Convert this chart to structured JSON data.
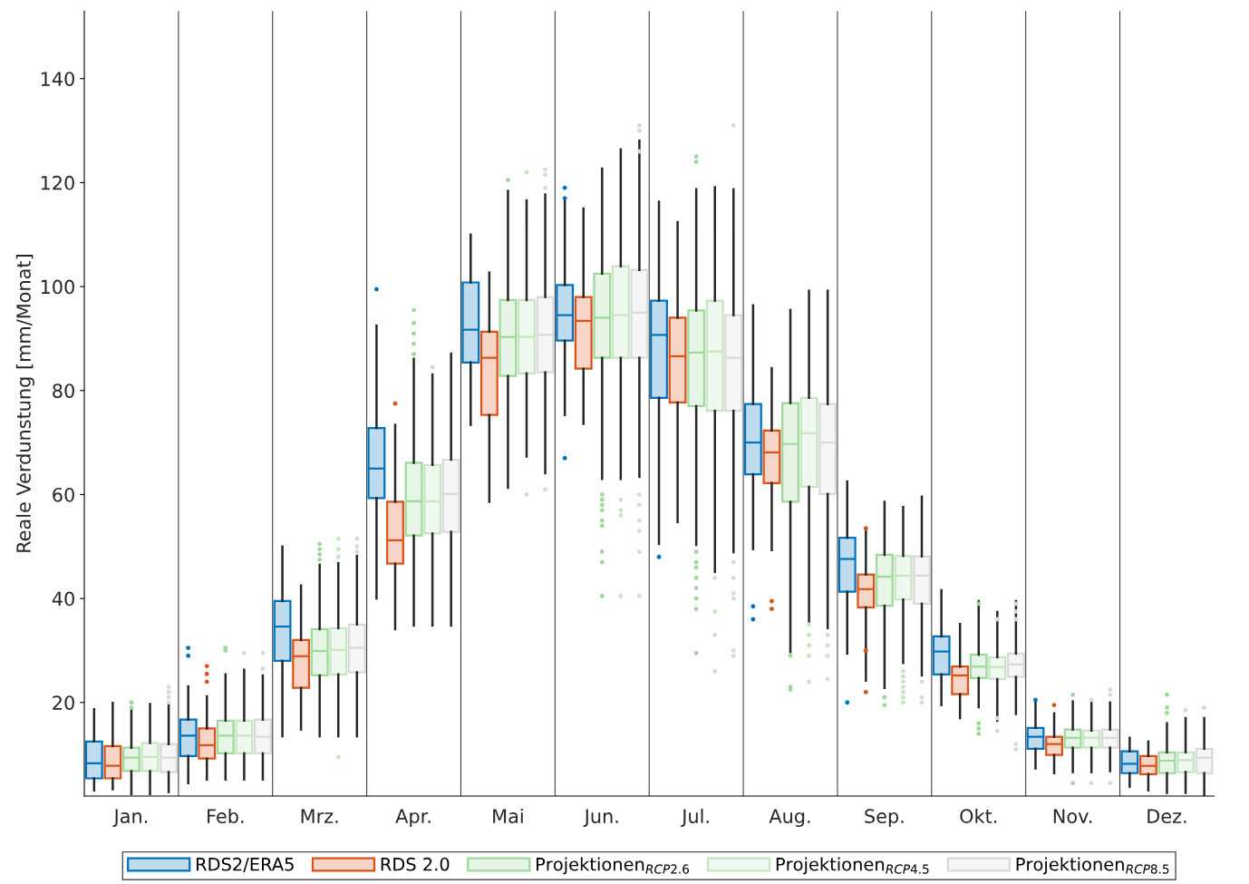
{
  "chart_data": {
    "type": "box",
    "ylabel": "Reale Verdunstung [mm/Monat]",
    "categories": [
      "Jan.",
      "Feb.",
      "Mrz.",
      "Apr.",
      "Mai",
      "Jun.",
      "Jul.",
      "Aug.",
      "Sep.",
      "Okt.",
      "Nov.",
      "Dez."
    ],
    "ylim": [
      2,
      153
    ],
    "yticks": [
      20,
      40,
      60,
      80,
      100,
      120,
      140
    ],
    "grid": "x",
    "legend": "bottom",
    "series": [
      {
        "name": "RDS2/ERA5",
        "color": "#0072bd",
        "boxes": [
          {
            "low": 3.1,
            "q1": 5.4,
            "median": 8.3,
            "q3": 12.5,
            "high": 18.7
          },
          {
            "low": 4.5,
            "q1": 9.7,
            "median": 13.6,
            "q3": 16.7,
            "high": 23.1,
            "outliers": [
              29,
              30.5
            ]
          },
          {
            "low": 13.5,
            "q1": 28,
            "median": 34.6,
            "q3": 39.5,
            "high": 50
          },
          {
            "low": 40,
            "q1": 59.3,
            "median": 65,
            "q3": 72.8,
            "high": 92.5,
            "outliers": [
              99.5
            ]
          },
          {
            "low": 73.4,
            "q1": 85.4,
            "median": 91.7,
            "q3": 100.8,
            "high": 110
          },
          {
            "low": 75.3,
            "q1": 89.6,
            "median": 94.5,
            "q3": 100.3,
            "high": 116.8,
            "outliers": [
              119,
              117,
              67
            ]
          },
          {
            "low": 50.5,
            "q1": 78.6,
            "median": 90.7,
            "q3": 97.3,
            "high": 116.3,
            "outliers": [
              48
            ]
          },
          {
            "low": 49.5,
            "q1": 63.9,
            "median": 70,
            "q3": 77.4,
            "high": 96.4,
            "outliers": [
              38.5,
              36
            ]
          },
          {
            "low": 29.4,
            "q1": 41.3,
            "median": 47.6,
            "q3": 51.7,
            "high": 62.5,
            "outliers": [
              20
            ]
          },
          {
            "low": 19.5,
            "q1": 25.4,
            "median": 29.8,
            "q3": 32.7,
            "high": 41.6
          },
          {
            "low": 7.3,
            "q1": 11.1,
            "median": 13.4,
            "q3": 15.1,
            "high": 20,
            "outliers": [
              20.5
            ]
          },
          {
            "low": 3.8,
            "q1": 6.4,
            "median": 8.2,
            "q3": 10.6,
            "high": 13.2
          }
        ]
      },
      {
        "name": "RDS 2.0",
        "color": "#d95319",
        "boxes": [
          {
            "low": 3.3,
            "q1": 5.4,
            "median": 7.8,
            "q3": 11.6,
            "high": 19.9
          },
          {
            "low": 5.2,
            "q1": 9.2,
            "median": 11.8,
            "q3": 15,
            "high": 21.2,
            "outliers": [
              24,
              25.5,
              27
            ]
          },
          {
            "low": 14.8,
            "q1": 22.8,
            "median": 28.9,
            "q3": 32,
            "high": 42.5
          },
          {
            "low": 34.1,
            "q1": 46.7,
            "median": 51.2,
            "q3": 58.6,
            "high": 73.4,
            "outliers": [
              77.5
            ]
          },
          {
            "low": 58.6,
            "q1": 75.3,
            "median": 86.3,
            "q3": 91.3,
            "high": 102.7
          },
          {
            "low": 73.6,
            "q1": 84.2,
            "median": 93.4,
            "q3": 98,
            "high": 115
          },
          {
            "low": 54.7,
            "q1": 77.7,
            "median": 86.6,
            "q3": 94,
            "high": 112.4
          },
          {
            "low": 49.3,
            "q1": 62.2,
            "median": 68.1,
            "q3": 72.3,
            "high": 84.3,
            "outliers": [
              39.5,
              38
            ]
          },
          {
            "low": 24.2,
            "q1": 38.3,
            "median": 41.8,
            "q3": 44.6,
            "high": 52.9,
            "outliers": [
              53.5,
              30,
              22
            ]
          },
          {
            "low": 17,
            "q1": 21.6,
            "median": 25.2,
            "q3": 26.9,
            "high": 35.1
          },
          {
            "low": 6.4,
            "q1": 9.9,
            "median": 12,
            "q3": 13.4,
            "high": 17.9,
            "outliers": [
              19.5
            ]
          },
          {
            "low": 3.1,
            "q1": 6.2,
            "median": 7.8,
            "q3": 9.7,
            "high": 12.5
          }
        ]
      },
      {
        "name": "Projektionen$_{RCP2.6}$",
        "color": "#9fd89b",
        "boxes": [
          {
            "low": 2.4,
            "q1": 6.8,
            "median": 9.4,
            "q3": 11.3,
            "high": 18.8,
            "outliers": [
              19,
              20
            ]
          },
          {
            "low": 5.2,
            "q1": 10.2,
            "median": 13.6,
            "q3": 16.5,
            "high": 25.4,
            "outliers": [
              30,
              30.5
            ]
          },
          {
            "low": 13.5,
            "q1": 25.2,
            "median": 29.9,
            "q3": 34.1,
            "high": 46.5,
            "outliers": [
              47.5,
              48.5,
              49.5,
              50.5
            ]
          },
          {
            "low": 34.8,
            "q1": 52.1,
            "median": 58.7,
            "q3": 66.1,
            "high": 86.1,
            "outliers": [
              87,
              89,
              91,
              93,
              95.5
            ]
          },
          {
            "low": 61.3,
            "q1": 82.8,
            "median": 90.3,
            "q3": 97.4,
            "high": 118.4,
            "outliers": [
              120.5
            ]
          },
          {
            "low": 63,
            "q1": 86.3,
            "median": 94,
            "q3": 102.5,
            "high": 122.7,
            "outliers": [
              60,
              59,
              58,
              57,
              55,
              54,
              49,
              47,
              40.5
            ]
          },
          {
            "low": 50.3,
            "q1": 77,
            "median": 87.3,
            "q3": 95.4,
            "high": 118.7,
            "outliers": [
              125,
              124,
              49,
              47,
              46,
              44,
              42,
              40,
              38,
              29.5
            ]
          },
          {
            "low": 29.7,
            "q1": 58.6,
            "median": 69.7,
            "q3": 77.6,
            "high": 95.5,
            "outliers": [
              29,
              23,
              22.5
            ]
          },
          {
            "low": 22.8,
            "q1": 38.6,
            "median": 44.2,
            "q3": 48.4,
            "high": 58.6,
            "outliers": [
              21,
              19.5
            ]
          },
          {
            "low": 19.1,
            "q1": 24.7,
            "median": 26.9,
            "q3": 29.2,
            "high": 39.5,
            "outliers": [
              39,
              16,
              15,
              14
            ]
          },
          {
            "low": 6.6,
            "q1": 11.3,
            "median": 13.2,
            "q3": 14.8,
            "high": 20.2,
            "outliers": [
              21.5,
              4.5
            ]
          },
          {
            "low": 2.6,
            "q1": 6.4,
            "median": 8.8,
            "q3": 10.4,
            "high": 16,
            "outliers": [
              21.5,
              19,
              18
            ]
          }
        ]
      },
      {
        "name": "Projektionen$_{RCP4.5}$",
        "color": "#c5e6c1",
        "boxes": [
          {
            "low": 2.4,
            "q1": 6.8,
            "median": 9.5,
            "q3": 12.2,
            "high": 19.7
          },
          {
            "low": 5.2,
            "q1": 10.2,
            "median": 13.6,
            "q3": 16.5,
            "high": 26.3,
            "outliers": [
              29.5
            ]
          },
          {
            "low": 13.5,
            "q1": 25.4,
            "median": 30.1,
            "q3": 34.3,
            "high": 46.8,
            "outliers": [
              48,
              49.5,
              51.5,
              9.5
            ]
          },
          {
            "low": 34.8,
            "q1": 52.5,
            "median": 58.7,
            "q3": 65.7,
            "high": 83.1,
            "outliers": [
              84.5
            ]
          },
          {
            "low": 67.3,
            "q1": 83.3,
            "median": 90.3,
            "q3": 97.4,
            "high": 116.6,
            "outliers": [
              122,
              60
            ]
          },
          {
            "low": 63,
            "q1": 86.3,
            "median": 94.5,
            "q3": 103.9,
            "high": 126.4,
            "outliers": [
              59,
              57,
              56,
              40.5
            ]
          },
          {
            "low": 45.1,
            "q1": 76.1,
            "median": 87.5,
            "q3": 97.3,
            "high": 119.1,
            "outliers": [
              44,
              37.5,
              33,
              26
            ]
          },
          {
            "low": 35.1,
            "q1": 61.5,
            "median": 71.8,
            "q3": 78.6,
            "high": 99.2,
            "outliers": [
              35,
              33,
              31,
              29,
              24
            ]
          },
          {
            "low": 27.6,
            "q1": 39.8,
            "median": 44.4,
            "q3": 48.2,
            "high": 57.6,
            "outliers": [
              26,
              25,
              24,
              23,
              22,
              21,
              20
            ]
          },
          {
            "low": 16.5,
            "q1": 24.5,
            "median": 26.8,
            "q3": 28.7,
            "high": 37.4,
            "outliers": [
              36,
              17,
              14.5
            ]
          },
          {
            "low": 6.6,
            "q1": 11.3,
            "median": 13.2,
            "q3": 14.6,
            "high": 19.9,
            "outliers": [
              20.5,
              4.5
            ]
          },
          {
            "low": 2.6,
            "q1": 6.6,
            "median": 8.9,
            "q3": 10.4,
            "high": 17,
            "outliers": [
              18.5
            ]
          }
        ]
      },
      {
        "name": "Projektionen$_{RCP8.5}$",
        "color": "#d9d9d9",
        "boxes": [
          {
            "low": 2.8,
            "q1": 6.6,
            "median": 9.4,
            "q3": 12,
            "high": 19.7,
            "outliers": [
              20,
              21,
              22,
              23
            ]
          },
          {
            "low": 5.2,
            "q1": 10.2,
            "median": 13.4,
            "q3": 16.7,
            "high": 25.2,
            "outliers": [
              26.5,
              29.5
            ]
          },
          {
            "low": 13.5,
            "q1": 25.8,
            "median": 30.5,
            "q3": 35,
            "high": 48.2,
            "outliers": [
              49,
              50,
              51.5
            ]
          },
          {
            "low": 34.8,
            "q1": 52.8,
            "median": 60.1,
            "q3": 66.7,
            "high": 87.1
          },
          {
            "low": 64.1,
            "q1": 83.5,
            "median": 90.7,
            "q3": 98,
            "high": 117.7,
            "outliers": [
              122.5,
              121.5,
              119,
              61
            ]
          },
          {
            "low": 63.4,
            "q1": 86.3,
            "median": 95,
            "q3": 103.2,
            "high": 128.1,
            "outliers": [
              131,
              130,
              126,
              60,
              58,
              55,
              53,
              49,
              40.5
            ]
          },
          {
            "low": 48.9,
            "q1": 76.1,
            "median": 86.3,
            "q3": 94.5,
            "high": 118.7,
            "outliers": [
              131,
              47,
              44,
              41,
              40,
              30,
              29
            ]
          },
          {
            "low": 34.3,
            "q1": 60.1,
            "median": 70,
            "q3": 77.4,
            "high": 99.2,
            "outliers": [
              33,
              31,
              29,
              24.5
            ]
          },
          {
            "low": 25.2,
            "q1": 39,
            "median": 44.4,
            "q3": 48.1,
            "high": 59.6,
            "outliers": [
              24,
              21,
              20
            ]
          },
          {
            "low": 17.8,
            "q1": 24.9,
            "median": 27.3,
            "q3": 29.4,
            "high": 39.5,
            "outliers": [
              39,
              37.5,
              36,
              12,
              11
            ]
          },
          {
            "low": 6.8,
            "q1": 11.3,
            "median": 13.2,
            "q3": 14.8,
            "high": 20,
            "outliers": [
              22.5,
              21.5,
              4.5
            ]
          },
          {
            "low": 2.2,
            "q1": 6.4,
            "median": 9.4,
            "q3": 11.1,
            "high": 17,
            "outliers": [
              19
            ]
          }
        ]
      }
    ]
  }
}
